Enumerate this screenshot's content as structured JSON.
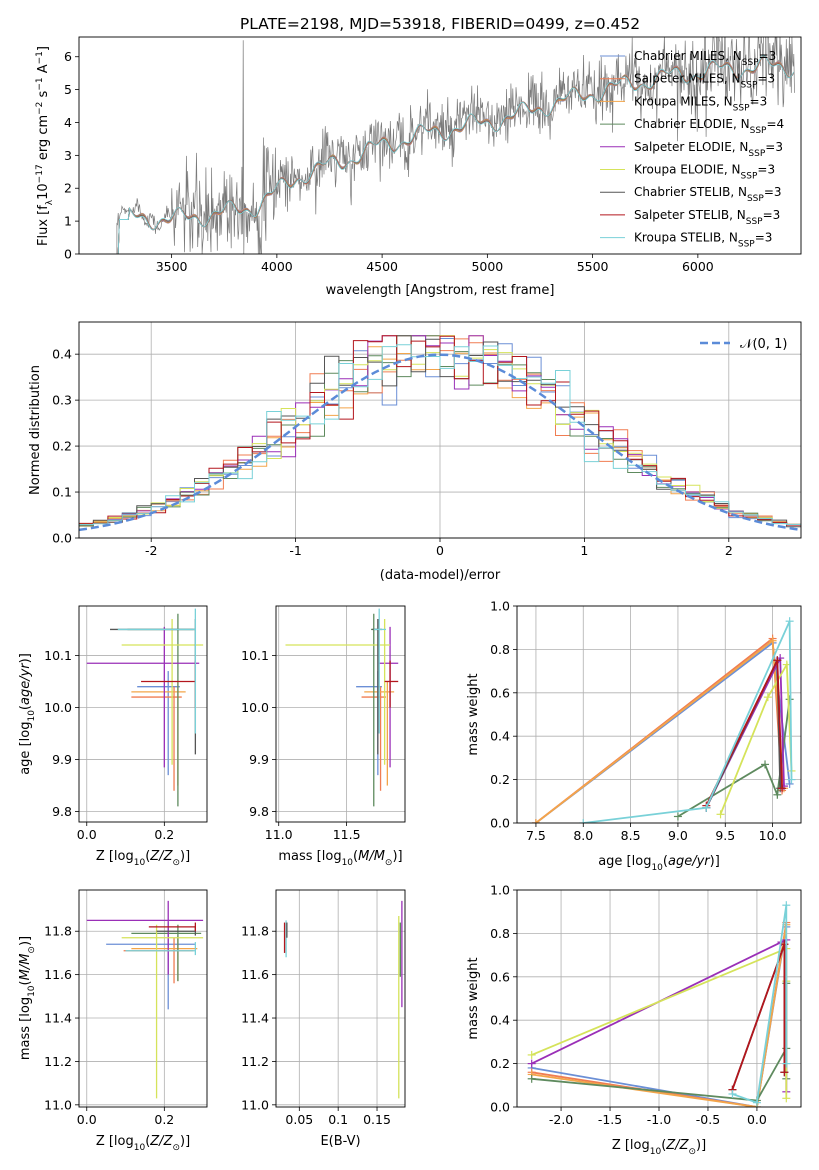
{
  "colors": {
    "Chabrier MILES": "#6b8fd6",
    "Salpeter MILES": "#f07d52",
    "Kroupa MILES": "#f3a54a",
    "Chabrier ELODIE": "#5e8a5e",
    "Salpeter ELODIE": "#9a2fb7",
    "Kroupa ELODIE": "#d5e35a",
    "Chabrier STELIB": "#555555",
    "Salpeter STELIB": "#b3161d",
    "Kroupa STELIB": "#79d1d8"
  },
  "chart_data": [
    {
      "id": "spectrum",
      "type": "line",
      "title": "PLATE=2198, MJD=53918, FIBERID=0499, z=0.452",
      "xlabel": "wavelength [Angstrom, rest frame]",
      "ylabel": "Flux [f_λ 10^-17 erg cm^-2 s^-1 A^-1]",
      "xlim": [
        3060,
        6490
      ],
      "ylim": [
        0,
        6.6
      ],
      "xticks": [
        3500,
        4000,
        4500,
        5000,
        5500,
        6000
      ],
      "yticks": [
        0,
        1,
        2,
        3,
        4,
        5,
        6
      ],
      "legend_position": "upper right",
      "legend": [
        {
          "name": "Chabrier MILES",
          "label": "Chabrier MILES, N_SSP=3"
        },
        {
          "name": "Salpeter MILES",
          "label": "Salpeter MILES, N_SSP=3"
        },
        {
          "name": "Kroupa MILES",
          "label": "Kroupa MILES, N_SSP=3"
        },
        {
          "name": "Chabrier ELODIE",
          "label": "Chabrier ELODIE, N_SSP=4"
        },
        {
          "name": "Salpeter ELODIE",
          "label": "Salpeter ELODIE, N_SSP=3"
        },
        {
          "name": "Kroupa ELODIE",
          "label": "Kroupa ELODIE, N_SSP=3"
        },
        {
          "name": "Chabrier STELIB",
          "label": "Chabrier STELIB, N_SSP=3"
        },
        {
          "name": "Salpeter STELIB",
          "label": "Salpeter STELIB, N_SSP=3"
        },
        {
          "name": "Kroupa STELIB",
          "label": "Kroupa STELIB, N_SSP=3"
        }
      ],
      "model_trend": {
        "x": [
          3240,
          3300,
          3500,
          3700,
          3900,
          4000,
          4100,
          4300,
          4500,
          4700,
          4900,
          5000,
          5100,
          5300,
          5500,
          5700,
          5900,
          6100,
          6300
        ],
        "y": [
          1.0,
          1.2,
          1.15,
          1.3,
          1.55,
          2.0,
          2.45,
          2.9,
          3.4,
          3.75,
          4.0,
          4.1,
          4.25,
          4.65,
          5.0,
          5.3,
          5.55,
          5.7,
          5.8
        ]
      },
      "data_xrange": [
        3240,
        6460
      ],
      "data_noise_sigma": 0.45,
      "data_spike": {
        "x": 3840,
        "y": 6.5
      }
    },
    {
      "id": "residuals",
      "type": "histogram",
      "xlabel": "(data-model)/error",
      "ylabel": "Normed distribution",
      "xlim": [
        -2.5,
        2.5
      ],
      "ylim": [
        0,
        0.47
      ],
      "xticks": [
        -2,
        -1,
        0,
        1,
        2
      ],
      "yticks": [
        0.0,
        0.1,
        0.2,
        0.3,
        0.4
      ],
      "bin_width": 0.1,
      "reference_curve": {
        "label": "N(0,1)",
        "mean": 0,
        "sigma": 1,
        "color": "#5b8bd8",
        "style": "dashed"
      },
      "legend_position": "upper right"
    },
    {
      "id": "age-vs-Z",
      "type": "errorbar",
      "xlabel": "Z [log10(Z/Z⊙)]",
      "ylabel": "age [log10(age/yr)]",
      "xlim": [
        -0.02,
        0.31
      ],
      "ylim": [
        9.78,
        10.195
      ],
      "xticks": [
        0.0,
        0.2
      ],
      "yticks": [
        9.8,
        9.9,
        10.0,
        10.1
      ],
      "points": [
        {
          "name": "Chabrier MILES",
          "x": 0.21,
          "xerr": [
            0.08,
            0.03
          ],
          "y": 10.04,
          "yerr": [
            0.17,
            0.03
          ]
        },
        {
          "name": "Salpeter MILES",
          "x": 0.225,
          "xerr": [
            0.11,
            0.02
          ],
          "y": 10.02,
          "yerr": [
            0.18,
            0.02
          ]
        },
        {
          "name": "Kroupa MILES",
          "x": 0.235,
          "xerr": [
            0.12,
            0.02
          ],
          "y": 10.03,
          "yerr": [
            0.18,
            0.02
          ]
        },
        {
          "name": "Chabrier ELODIE",
          "x": 0.235,
          "xerr": [
            0.13,
            0.04
          ],
          "y": 10.15,
          "yerr": [
            0.34,
            0.03
          ]
        },
        {
          "name": "Salpeter ELODIE",
          "x": 0.2,
          "xerr": [
            0.2,
            0.09
          ],
          "y": 10.085,
          "yerr": [
            0.2,
            0.07
          ]
        },
        {
          "name": "Kroupa ELODIE",
          "x": 0.22,
          "xerr": [
            0.13,
            0.08
          ],
          "y": 10.12,
          "yerr": [
            0.23,
            0.05
          ]
        },
        {
          "name": "Chabrier STELIB",
          "x": 0.28,
          "xerr": [
            0.22,
            0.0
          ],
          "y": 10.15,
          "yerr": [
            0.24,
            0.02
          ]
        },
        {
          "name": "Salpeter STELIB",
          "x": 0.28,
          "xerr": [
            0.14,
            0.0
          ],
          "y": 10.05,
          "yerr": [
            0.05,
            0.04
          ]
        },
        {
          "name": "Kroupa STELIB",
          "x": 0.28,
          "xerr": [
            0.2,
            0.0
          ],
          "y": 10.15,
          "yerr": [
            0.2,
            0.04
          ]
        }
      ]
    },
    {
      "id": "age-vs-mass",
      "type": "errorbar",
      "xlabel": "mass [log10(M/M⊙)]",
      "xlim": [
        10.98,
        11.93
      ],
      "ylim": [
        9.78,
        10.195
      ],
      "xticks": [
        11.0,
        11.5
      ],
      "yticks": [
        9.8,
        9.9,
        10.0,
        10.1
      ],
      "points": [
        {
          "name": "Chabrier MILES",
          "x": 11.73,
          "xerr": [
            0.16,
            0.03
          ],
          "y": 10.04,
          "yerr": [
            0.17,
            0.03
          ]
        },
        {
          "name": "Salpeter MILES",
          "x": 11.75,
          "xerr": [
            0.14,
            0.04
          ],
          "y": 10.02,
          "yerr": [
            0.18,
            0.02
          ]
        },
        {
          "name": "Kroupa MILES",
          "x": 11.8,
          "xerr": [
            0.17,
            0.05
          ],
          "y": 10.03,
          "yerr": [
            0.18,
            0.02
          ]
        },
        {
          "name": "Chabrier ELODIE",
          "x": 11.7,
          "xerr": [
            0.02,
            0.03
          ],
          "y": 10.15,
          "yerr": [
            0.34,
            0.03
          ]
        },
        {
          "name": "Salpeter ELODIE",
          "x": 11.82,
          "xerr": [
            0.08,
            0.06
          ],
          "y": 10.085,
          "yerr": [
            0.2,
            0.07
          ]
        },
        {
          "name": "Kroupa ELODIE",
          "x": 11.78,
          "xerr": [
            0.73,
            0.04
          ],
          "y": 10.12,
          "yerr": [
            0.23,
            0.05
          ]
        },
        {
          "name": "Chabrier STELIB",
          "x": 11.73,
          "xerr": [
            0.04,
            0.03
          ],
          "y": 10.15,
          "yerr": [
            0.24,
            0.02
          ]
        },
        {
          "name": "Salpeter STELIB",
          "x": 11.82,
          "xerr": [
            0.04,
            0.06
          ],
          "y": 10.05,
          "yerr": [
            0.05,
            0.04
          ]
        },
        {
          "name": "Kroupa STELIB",
          "x": 11.74,
          "xerr": [
            0.04,
            0.05
          ],
          "y": 10.15,
          "yerr": [
            0.2,
            0.04
          ]
        }
      ]
    },
    {
      "id": "weight-vs-age",
      "type": "line",
      "xlabel": "age [log10(age/yr)]",
      "ylabel": "mass weight",
      "xlim": [
        7.3,
        10.3
      ],
      "ylim": [
        0,
        1
      ],
      "xticks": [
        7.5,
        8.0,
        8.5,
        9.0,
        9.5,
        10.0
      ],
      "yticks": [
        0.0,
        0.2,
        0.4,
        0.6,
        0.8,
        1.0
      ],
      "series": [
        {
          "name": "Chabrier MILES",
          "x": [
            7.5,
            10.0,
            10.18
          ],
          "y": [
            0.0,
            0.83,
            0.18
          ]
        },
        {
          "name": "Salpeter MILES",
          "x": [
            7.5,
            10.0,
            10.1
          ],
          "y": [
            0.0,
            0.85,
            0.15
          ]
        },
        {
          "name": "Kroupa MILES",
          "x": [
            7.5,
            10.0,
            10.12
          ],
          "y": [
            0.0,
            0.84,
            0.16
          ]
        },
        {
          "name": "Chabrier ELODIE",
          "x": [
            9.0,
            9.92,
            10.05,
            10.18
          ],
          "y": [
            0.03,
            0.27,
            0.13,
            0.57
          ]
        },
        {
          "name": "Salpeter ELODIE",
          "x": [
            9.3,
            10.08,
            10.12
          ],
          "y": [
            0.07,
            0.76,
            0.17
          ]
        },
        {
          "name": "Kroupa ELODIE",
          "x": [
            9.45,
            9.95,
            10.15,
            10.2
          ],
          "y": [
            0.04,
            0.58,
            0.73,
            0.24
          ]
        },
        {
          "name": "Chabrier STELIB",
          "x": [
            9.3,
            10.05,
            10.08
          ],
          "y": [
            0.07,
            0.75,
            0.16
          ]
        },
        {
          "name": "Salpeter STELIB",
          "x": [
            9.3,
            10.05,
            10.1
          ],
          "y": [
            0.08,
            0.75,
            0.16
          ]
        },
        {
          "name": "Kroupa STELIB",
          "x": [
            8.0,
            9.3,
            10.18,
            10.2
          ],
          "y": [
            0.0,
            0.07,
            0.93,
            0.2
          ]
        }
      ]
    },
    {
      "id": "mass-vs-Z",
      "type": "errorbar",
      "xlabel": "Z [log10(Z/Z⊙)]",
      "ylabel": "mass [log10(M/M⊙)]",
      "xlim": [
        -0.02,
        0.31
      ],
      "ylim": [
        10.99,
        11.99
      ],
      "xticks": [
        0.0,
        0.2
      ],
      "yticks": [
        11.0,
        11.2,
        11.4,
        11.6,
        11.8
      ],
      "points": [
        {
          "name": "Chabrier MILES",
          "x": 0.21,
          "xerr": [
            0.16,
            0.07
          ],
          "y": 11.74,
          "yerr": [
            0.3,
            0.1
          ]
        },
        {
          "name": "Salpeter MILES",
          "x": 0.225,
          "xerr": [
            0.13,
            0.05
          ],
          "y": 11.71,
          "yerr": [
            0.15,
            0.06
          ]
        },
        {
          "name": "Kroupa MILES",
          "x": 0.235,
          "xerr": [
            0.12,
            0.05
          ],
          "y": 11.72,
          "yerr": [
            0.15,
            0.06
          ]
        },
        {
          "name": "Chabrier ELODIE",
          "x": 0.235,
          "xerr": [
            0.12,
            0.06
          ],
          "y": 11.79,
          "yerr": [
            0.22,
            0.04
          ]
        },
        {
          "name": "Salpeter ELODIE",
          "x": 0.21,
          "xerr": [
            0.21,
            0.09
          ],
          "y": 11.85,
          "yerr": [
            0.25,
            0.09
          ]
        },
        {
          "name": "Kroupa ELODIE",
          "x": 0.18,
          "xerr": [
            0.09,
            0.12
          ],
          "y": 11.77,
          "yerr": [
            0.74,
            0.06
          ]
        },
        {
          "name": "Chabrier STELIB",
          "x": 0.28,
          "xerr": [
            0.1,
            0.0
          ],
          "y": 11.8,
          "yerr": [
            0.02,
            0.02
          ]
        },
        {
          "name": "Salpeter STELIB",
          "x": 0.28,
          "xerr": [
            0.12,
            0.0
          ],
          "y": 11.82,
          "yerr": [
            0.02,
            0.02
          ]
        },
        {
          "name": "Kroupa STELIB",
          "x": 0.28,
          "xerr": [
            0.18,
            0.0
          ],
          "y": 11.71,
          "yerr": [
            0.02,
            0.04
          ]
        }
      ]
    },
    {
      "id": "mass-vs-ebv",
      "type": "errorbar",
      "xlabel": "E(B-V)",
      "xlim": [
        0.02,
        0.186
      ],
      "ylim": [
        10.99,
        11.99
      ],
      "xticks": [
        0.05,
        0.1,
        0.15
      ],
      "yticks": [
        11.0,
        11.2,
        11.4,
        11.6,
        11.8
      ],
      "points": [
        {
          "name": "Kroupa STELIB",
          "x": 0.033,
          "xerr": [
            0,
            0
          ],
          "y": 11.75,
          "yerr": [
            0.07,
            0.1
          ]
        },
        {
          "name": "Salpeter STELIB",
          "x": 0.031,
          "xerr": [
            0,
            0
          ],
          "y": 11.82,
          "yerr": [
            0.12,
            0.02
          ]
        },
        {
          "name": "Chabrier STELIB",
          "x": 0.034,
          "xerr": [
            0,
            0
          ],
          "y": 11.8,
          "yerr": [
            0.03,
            0.04
          ]
        },
        {
          "name": "Kroupa ELODIE",
          "x": 0.178,
          "xerr": [
            0,
            0
          ],
          "y": 11.77,
          "yerr": [
            0.74,
            0.1
          ]
        },
        {
          "name": "Salpeter ELODIE",
          "x": 0.182,
          "xerr": [
            0,
            0
          ],
          "y": 11.85,
          "yerr": [
            0.4,
            0.09
          ]
        },
        {
          "name": "Chabrier ELODIE",
          "x": 0.18,
          "xerr": [
            0,
            0
          ],
          "y": 11.79,
          "yerr": [
            0.2,
            0.05
          ]
        }
      ]
    },
    {
      "id": "weight-vs-Z",
      "type": "line",
      "xlabel": "Z [log10(Z/Z⊙)]",
      "ylabel": "mass weight",
      "xlim": [
        -2.45,
        0.45
      ],
      "ylim": [
        0,
        1
      ],
      "xticks": [
        -2.0,
        -1.5,
        -1.0,
        -0.5,
        0.0
      ],
      "yticks": [
        0.0,
        0.2,
        0.4,
        0.6,
        0.8,
        1.0
      ],
      "series": [
        {
          "name": "Chabrier MILES",
          "x": [
            -2.3,
            0.0,
            0.3
          ],
          "y": [
            0.18,
            0.0,
            0.83
          ]
        },
        {
          "name": "Salpeter MILES",
          "x": [
            -2.3,
            0.0,
            0.3
          ],
          "y": [
            0.16,
            0.0,
            0.85
          ]
        },
        {
          "name": "Kroupa MILES",
          "x": [
            -2.3,
            0.0,
            0.3
          ],
          "y": [
            0.15,
            0.0,
            0.84
          ]
        },
        {
          "name": "Chabrier ELODIE",
          "x": [
            -2.3,
            0.0,
            0.3,
            0.3,
            0.3
          ],
          "y": [
            0.13,
            0.03,
            0.27,
            0.57,
            0.13
          ]
        },
        {
          "name": "Salpeter ELODIE",
          "x": [
            -2.3,
            0.25,
            0.3,
            0.3
          ],
          "y": [
            0.2,
            0.76,
            0.77,
            0.07
          ]
        },
        {
          "name": "Kroupa ELODIE",
          "x": [
            -2.3,
            0.3,
            0.3,
            0.3
          ],
          "y": [
            0.24,
            0.73,
            0.58,
            0.04
          ]
        },
        {
          "name": "Chabrier STELIB",
          "x": [
            -0.25,
            0.28,
            0.28
          ],
          "y": [
            0.08,
            0.75,
            0.16
          ]
        },
        {
          "name": "Salpeter STELIB",
          "x": [
            -0.25,
            0.28,
            0.28
          ],
          "y": [
            0.08,
            0.75,
            0.16
          ]
        },
        {
          "name": "Kroupa STELIB",
          "x": [
            -0.25,
            0.0,
            0.3,
            0.3
          ],
          "y": [
            0.06,
            0.02,
            0.93,
            0.2
          ]
        }
      ]
    }
  ]
}
